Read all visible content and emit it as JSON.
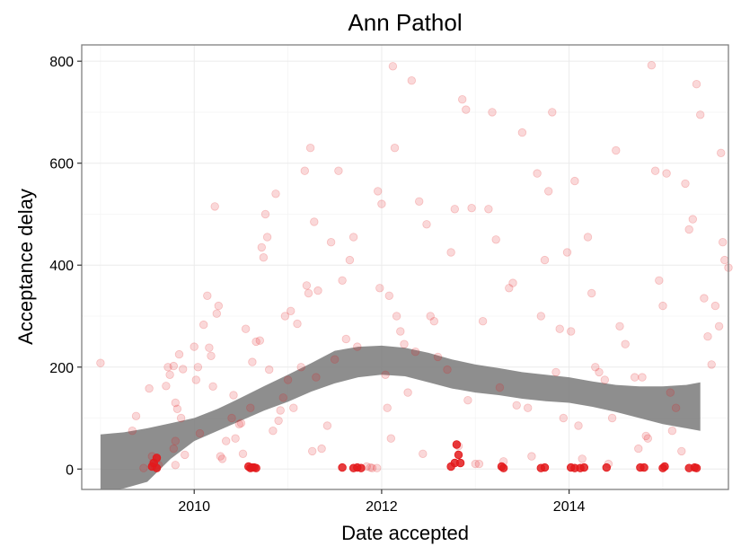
{
  "chart_data": {
    "type": "scatter",
    "title": "Ann Pathol",
    "xlabel": "Date accepted",
    "ylabel": "Acceptance delay",
    "x_ticks": [
      2010,
      2012,
      2014
    ],
    "y_ticks": [
      0,
      200,
      400,
      600,
      800
    ],
    "xlim": [
      2008.8,
      2015.7
    ],
    "ylim": [
      -40,
      832
    ],
    "grid": true,
    "legend": "none",
    "colors": {
      "points": "#e31a1c",
      "band": "#7a7a7a",
      "panel_border": "#7f7f7f"
    },
    "series": [
      {
        "values": [
          [
            2009.0,
            208
          ],
          [
            2009.34,
            75
          ],
          [
            2009.38,
            104
          ],
          [
            2009.46,
            2
          ],
          [
            2009.52,
            158
          ],
          [
            2009.55,
            25
          ],
          [
            2009.56,
            12
          ],
          [
            2009.58,
            5
          ],
          [
            2009.6,
            20
          ],
          [
            2009.62,
            8
          ],
          [
            2009.7,
            163
          ],
          [
            2009.72,
            200
          ],
          [
            2009.74,
            185
          ],
          [
            2009.78,
            202
          ],
          [
            2009.8,
            130
          ],
          [
            2009.82,
            118
          ],
          [
            2009.84,
            225
          ],
          [
            2009.86,
            100
          ],
          [
            2009.88,
            196
          ],
          [
            2009.9,
            28
          ],
          [
            2009.78,
            40
          ],
          [
            2009.8,
            55
          ],
          [
            2009.8,
            8
          ],
          [
            2010.0,
            240
          ],
          [
            2010.02,
            175
          ],
          [
            2010.04,
            200
          ],
          [
            2010.06,
            70
          ],
          [
            2010.1,
            283
          ],
          [
            2010.14,
            340
          ],
          [
            2010.16,
            238
          ],
          [
            2010.18,
            222
          ],
          [
            2010.2,
            162
          ],
          [
            2010.22,
            515
          ],
          [
            2010.24,
            305
          ],
          [
            2010.26,
            320
          ],
          [
            2010.28,
            25
          ],
          [
            2010.3,
            20
          ],
          [
            2010.34,
            55
          ],
          [
            2010.4,
            100
          ],
          [
            2010.42,
            145
          ],
          [
            2010.44,
            60
          ],
          [
            2010.48,
            88
          ],
          [
            2010.5,
            90
          ],
          [
            2010.52,
            30
          ],
          [
            2010.55,
            275
          ],
          [
            2010.6,
            120
          ],
          [
            2010.62,
            210
          ],
          [
            2010.66,
            250
          ],
          [
            2010.7,
            252
          ],
          [
            2010.72,
            435
          ],
          [
            2010.74,
            415
          ],
          [
            2010.76,
            500
          ],
          [
            2010.78,
            455
          ],
          [
            2010.8,
            195
          ],
          [
            2010.84,
            75
          ],
          [
            2010.87,
            540
          ],
          [
            2010.9,
            95
          ],
          [
            2010.92,
            115
          ],
          [
            2010.95,
            140
          ],
          [
            2010.97,
            300
          ],
          [
            2011.0,
            175
          ],
          [
            2011.03,
            310
          ],
          [
            2011.06,
            120
          ],
          [
            2011.1,
            285
          ],
          [
            2011.14,
            200
          ],
          [
            2011.18,
            585
          ],
          [
            2011.2,
            360
          ],
          [
            2011.22,
            345
          ],
          [
            2011.24,
            630
          ],
          [
            2011.26,
            35
          ],
          [
            2011.28,
            485
          ],
          [
            2011.3,
            180
          ],
          [
            2011.32,
            350
          ],
          [
            2011.36,
            40
          ],
          [
            2011.42,
            85
          ],
          [
            2011.46,
            445
          ],
          [
            2011.5,
            215
          ],
          [
            2011.54,
            585
          ],
          [
            2011.58,
            370
          ],
          [
            2011.62,
            255
          ],
          [
            2011.66,
            410
          ],
          [
            2011.7,
            455
          ],
          [
            2011.74,
            240
          ],
          [
            2011.84,
            5
          ],
          [
            2011.88,
            3
          ],
          [
            2011.9,
            2
          ],
          [
            2011.95,
            2
          ],
          [
            2011.96,
            545
          ],
          [
            2011.98,
            355
          ],
          [
            2012.0,
            520
          ],
          [
            2012.04,
            185
          ],
          [
            2012.06,
            120
          ],
          [
            2012.08,
            340
          ],
          [
            2012.1,
            60
          ],
          [
            2012.12,
            790
          ],
          [
            2012.14,
            630
          ],
          [
            2012.16,
            300
          ],
          [
            2012.2,
            270
          ],
          [
            2012.24,
            245
          ],
          [
            2012.28,
            150
          ],
          [
            2012.32,
            762
          ],
          [
            2012.36,
            230
          ],
          [
            2012.4,
            525
          ],
          [
            2012.44,
            30
          ],
          [
            2012.48,
            480
          ],
          [
            2012.52,
            300
          ],
          [
            2012.56,
            290
          ],
          [
            2012.6,
            220
          ],
          [
            2012.7,
            195
          ],
          [
            2012.74,
            425
          ],
          [
            2012.78,
            510
          ],
          [
            2012.82,
            45
          ],
          [
            2012.86,
            725
          ],
          [
            2012.9,
            705
          ],
          [
            2012.92,
            135
          ],
          [
            2012.96,
            512
          ],
          [
            2013.0,
            10
          ],
          [
            2013.04,
            10
          ],
          [
            2013.08,
            290
          ],
          [
            2013.14,
            510
          ],
          [
            2013.18,
            700
          ],
          [
            2013.22,
            450
          ],
          [
            2013.26,
            160
          ],
          [
            2013.3,
            15
          ],
          [
            2013.36,
            355
          ],
          [
            2013.4,
            365
          ],
          [
            2013.44,
            125
          ],
          [
            2013.5,
            660
          ],
          [
            2013.56,
            120
          ],
          [
            2013.6,
            25
          ],
          [
            2013.66,
            580
          ],
          [
            2013.7,
            300
          ],
          [
            2013.74,
            410
          ],
          [
            2013.78,
            545
          ],
          [
            2013.82,
            700
          ],
          [
            2013.86,
            190
          ],
          [
            2013.9,
            275
          ],
          [
            2013.94,
            100
          ],
          [
            2013.98,
            425
          ],
          [
            2014.02,
            270
          ],
          [
            2014.06,
            565
          ],
          [
            2014.1,
            85
          ],
          [
            2014.14,
            20
          ],
          [
            2014.2,
            455
          ],
          [
            2014.24,
            345
          ],
          [
            2014.28,
            200
          ],
          [
            2014.32,
            190
          ],
          [
            2014.38,
            175
          ],
          [
            2014.42,
            10
          ],
          [
            2014.46,
            100
          ],
          [
            2014.5,
            625
          ],
          [
            2014.54,
            280
          ],
          [
            2014.6,
            245
          ],
          [
            2014.7,
            180
          ],
          [
            2014.74,
            40
          ],
          [
            2014.78,
            180
          ],
          [
            2014.82,
            65
          ],
          [
            2014.84,
            60
          ],
          [
            2014.88,
            792
          ],
          [
            2014.92,
            585
          ],
          [
            2014.96,
            370
          ],
          [
            2015.0,
            320
          ],
          [
            2015.04,
            580
          ],
          [
            2015.08,
            150
          ],
          [
            2015.1,
            75
          ],
          [
            2015.14,
            120
          ],
          [
            2015.2,
            35
          ],
          [
            2015.24,
            560
          ],
          [
            2015.28,
            470
          ],
          [
            2015.32,
            490
          ],
          [
            2015.36,
            755
          ],
          [
            2015.4,
            695
          ],
          [
            2015.44,
            335
          ],
          [
            2015.48,
            260
          ],
          [
            2015.52,
            205
          ],
          [
            2015.56,
            320
          ],
          [
            2015.6,
            280
          ],
          [
            2015.62,
            620
          ],
          [
            2015.64,
            445
          ],
          [
            2015.66,
            410
          ],
          [
            2015.7,
            395
          ]
        ],
        "opacity": 0.17
      },
      {
        "values": [
          [
            2009.55,
            5
          ],
          [
            2009.57,
            12
          ],
          [
            2009.6,
            2
          ],
          [
            2009.6,
            22
          ],
          [
            2010.58,
            5
          ],
          [
            2010.6,
            2
          ],
          [
            2010.62,
            3
          ],
          [
            2010.64,
            3
          ],
          [
            2010.66,
            2
          ],
          [
            2011.58,
            3
          ],
          [
            2011.7,
            2
          ],
          [
            2011.74,
            3
          ],
          [
            2011.78,
            2
          ],
          [
            2012.74,
            5
          ],
          [
            2012.78,
            12
          ],
          [
            2012.8,
            48
          ],
          [
            2012.82,
            28
          ],
          [
            2012.84,
            12
          ],
          [
            2013.28,
            5
          ],
          [
            2013.3,
            2
          ],
          [
            2013.7,
            2
          ],
          [
            2013.74,
            3
          ],
          [
            2014.02,
            3
          ],
          [
            2014.06,
            2
          ],
          [
            2014.12,
            2
          ],
          [
            2014.16,
            3
          ],
          [
            2014.4,
            3
          ],
          [
            2014.76,
            3
          ],
          [
            2014.8,
            3
          ],
          [
            2015.0,
            2
          ],
          [
            2015.02,
            5
          ],
          [
            2015.28,
            2
          ],
          [
            2015.34,
            3
          ],
          [
            2015.36,
            2
          ]
        ],
        "opacity": 0.85
      }
    ],
    "smooth_band": {
      "x": [
        2009.0,
        2009.25,
        2009.5,
        2009.75,
        2010.0,
        2010.25,
        2010.5,
        2010.75,
        2011.0,
        2011.25,
        2011.5,
        2011.75,
        2012.0,
        2012.25,
        2012.5,
        2012.75,
        2013.0,
        2013.25,
        2013.5,
        2013.75,
        2014.0,
        2014.25,
        2014.5,
        2014.75,
        2015.0,
        2015.25,
        2015.4
      ],
      "upper": [
        68,
        72,
        80,
        90,
        100,
        118,
        140,
        163,
        185,
        208,
        232,
        240,
        242,
        238,
        228,
        215,
        205,
        198,
        190,
        185,
        180,
        172,
        165,
        162,
        162,
        165,
        170
      ],
      "lower": [
        -45,
        -38,
        -25,
        20,
        55,
        75,
        95,
        115,
        132,
        152,
        168,
        180,
        185,
        182,
        170,
        158,
        150,
        145,
        138,
        133,
        130,
        122,
        112,
        100,
        88,
        80,
        75
      ]
    }
  }
}
